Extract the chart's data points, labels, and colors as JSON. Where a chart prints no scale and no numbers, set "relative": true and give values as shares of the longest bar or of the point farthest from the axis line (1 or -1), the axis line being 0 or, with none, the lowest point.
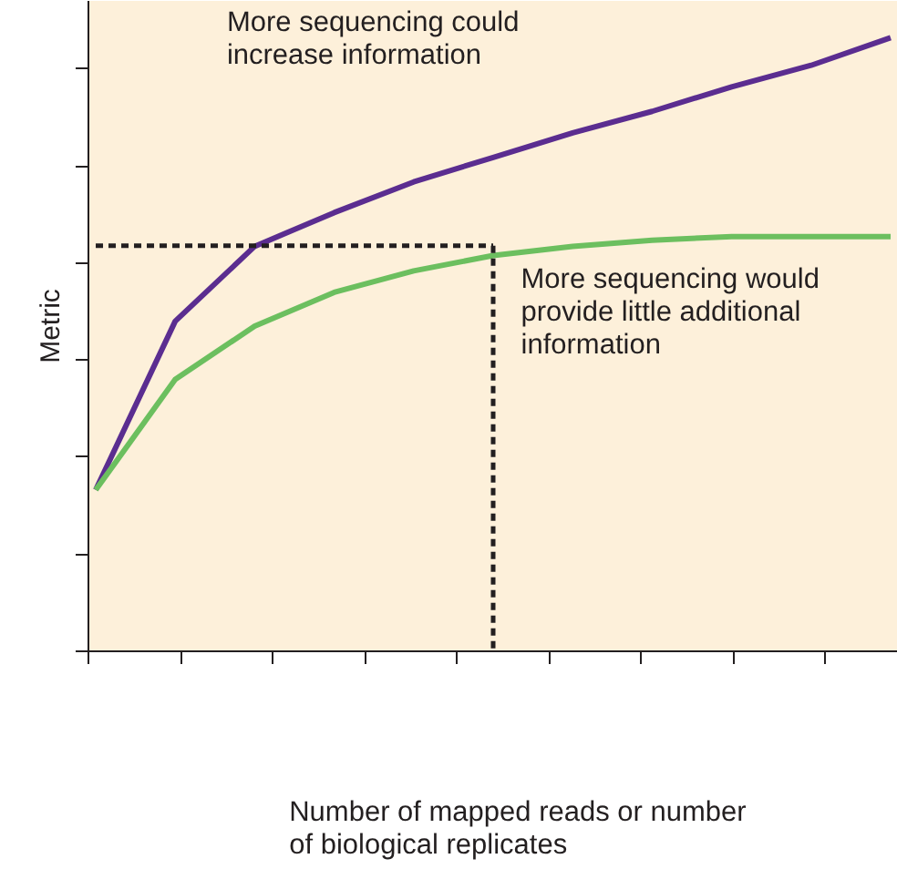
{
  "chart_data": {
    "type": "line",
    "relative": true,
    "ylabel": "Metric",
    "annotations": [
      "Number of mapped reads or number\nof biological replicates"
    ],
    "categories": [
      null,
      null,
      null,
      null,
      null,
      null,
      null,
      null,
      null,
      null,
      null
    ],
    "grid": false,
    "legend": false,
    "marker": "none",
    "series": [
      {
        "name": "More sequencing could\nincrease information",
        "color": "#5b2d90",
        "values": [
          0.263,
          0.538,
          0.66,
          0.715,
          0.765,
          0.805,
          0.845,
          0.88,
          0.92,
          0.955,
          1
        ]
      },
      {
        "name": "More sequencing would\nprovide little additional\ninformation",
        "color": "#6cbf5f",
        "values": [
          0.263,
          0.443,
          0.53,
          0.585,
          0.62,
          0.645,
          0.66,
          0.67,
          0.676,
          0.676,
          0.676
        ]
      },
      {
        "color": "#231f20",
        "line_style": "dashed",
        "values": [
          0.661,
          0.661,
          0.661,
          0.661,
          0.661,
          0.661,
          null,
          null,
          null,
          null,
          null
        ]
      }
    ]
  }
}
